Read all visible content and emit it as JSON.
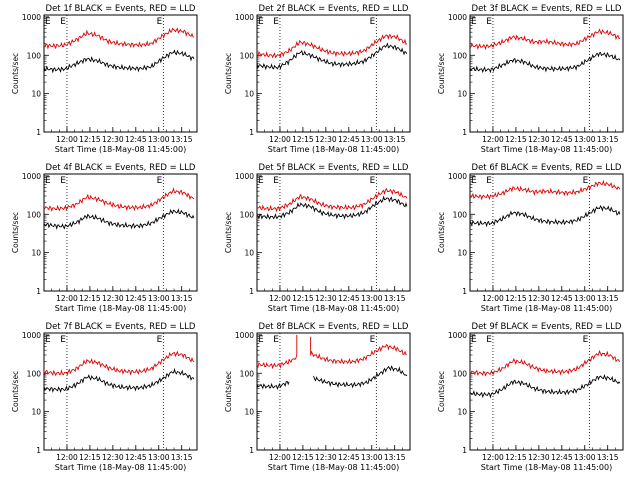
{
  "figure": {
    "xlabel": "Start Time (18-May-08 11:45:00)",
    "ylabel": "Counts/sec",
    "x_ticks": [
      "12:00",
      "12:15",
      "12:30",
      "12:45",
      "13:00",
      "13:15"
    ],
    "y_ticks": [
      "1",
      "10",
      "100",
      "1000"
    ],
    "marker_label": "E",
    "colors": {
      "events": "#000000",
      "lld": "#e00000",
      "axes": "#000000"
    }
  },
  "chart_data": [
    {
      "type": "line",
      "title": "Det 1f BLACK = Events, RED = LLD",
      "xlabel": "Start Time (18-May-08 11:45:00)",
      "ylabel": "Counts/sec",
      "y_scale": "log",
      "ylim": [
        1,
        1000
      ],
      "x_ticks": [
        "12:00",
        "12:15",
        "12:30",
        "12:45",
        "13:00",
        "13:15"
      ],
      "markers": [
        "12:00",
        "13:03"
      ],
      "series": [
        {
          "name": "Events",
          "x": [
            "11:45",
            "11:52",
            "11:59",
            "12:06",
            "12:13",
            "12:20",
            "12:27",
            "12:34",
            "12:41",
            "12:48",
            "12:55",
            "13:02",
            "13:09",
            "13:16",
            "13:23"
          ],
          "y": [
            45,
            42,
            44,
            60,
            80,
            72,
            55,
            48,
            46,
            45,
            50,
            80,
            120,
            110,
            80
          ]
        },
        {
          "name": "LLD",
          "x": [
            "11:45",
            "11:52",
            "11:59",
            "12:06",
            "12:13",
            "12:20",
            "12:27",
            "12:34",
            "12:41",
            "12:48",
            "12:55",
            "13:02",
            "13:09",
            "13:16",
            "13:23"
          ],
          "y": [
            180,
            175,
            185,
            250,
            380,
            330,
            230,
            200,
            190,
            185,
            200,
            310,
            460,
            420,
            300
          ]
        }
      ]
    },
    {
      "type": "line",
      "title": "Det 2f BLACK = Events, RED = LLD",
      "xlabel": "Start Time (18-May-08 11:45:00)",
      "ylabel": "Counts/sec",
      "y_scale": "log",
      "ylim": [
        1,
        1000
      ],
      "x_ticks": [
        "12:00",
        "12:15",
        "12:30",
        "12:45",
        "13:00",
        "13:15"
      ],
      "markers": [
        "12:00",
        "13:03"
      ],
      "series": [
        {
          "name": "Events",
          "x": [
            "11:45",
            "11:52",
            "11:59",
            "12:06",
            "12:13",
            "12:20",
            "12:27",
            "12:34",
            "12:41",
            "12:48",
            "12:55",
            "13:02",
            "13:09",
            "13:16",
            "13:23"
          ],
          "y": [
            55,
            50,
            48,
            70,
            120,
            100,
            75,
            60,
            58,
            60,
            70,
            110,
            180,
            160,
            110
          ]
        },
        {
          "name": "LLD",
          "x": [
            "11:45",
            "11:52",
            "11:59",
            "12:06",
            "12:13",
            "12:20",
            "12:27",
            "12:34",
            "12:41",
            "12:48",
            "12:55",
            "13:02",
            "13:09",
            "13:16",
            "13:23"
          ],
          "y": [
            110,
            100,
            98,
            130,
            220,
            190,
            140,
            115,
            110,
            112,
            130,
            210,
            320,
            300,
            200
          ]
        }
      ]
    },
    {
      "type": "line",
      "title": "Det 3f BLACK = Events, RED = LLD",
      "xlabel": "Start Time (18-May-08 11:45:00)",
      "ylabel": "Counts/sec",
      "y_scale": "log",
      "ylim": [
        1,
        1000
      ],
      "x_ticks": [
        "12:00",
        "12:15",
        "12:30",
        "12:45",
        "13:00",
        "13:15"
      ],
      "markers": [
        "12:00",
        "13:03"
      ],
      "series": [
        {
          "name": "Events",
          "x": [
            "11:45",
            "11:52",
            "11:59",
            "12:06",
            "12:13",
            "12:20",
            "12:27",
            "12:34",
            "12:41",
            "12:48",
            "12:55",
            "13:02",
            "13:09",
            "13:16",
            "13:23"
          ],
          "y": [
            45,
            42,
            42,
            55,
            75,
            68,
            50,
            45,
            44,
            45,
            50,
            75,
            110,
            100,
            75
          ]
        },
        {
          "name": "LLD",
          "x": [
            "11:45",
            "11:52",
            "11:59",
            "12:06",
            "12:13",
            "12:20",
            "12:27",
            "12:34",
            "12:41",
            "12:48",
            "12:55",
            "13:02",
            "13:09",
            "13:16",
            "13:23"
          ],
          "y": [
            180,
            170,
            175,
            220,
            300,
            270,
            220,
            230,
            210,
            190,
            200,
            290,
            420,
            380,
            280
          ]
        }
      ]
    },
    {
      "type": "line",
      "title": "Det 4f BLACK = Events, RED = LLD",
      "xlabel": "Start Time (18-May-08 11:45:00)",
      "ylabel": "Counts/sec",
      "y_scale": "log",
      "ylim": [
        1,
        1000
      ],
      "x_ticks": [
        "12:00",
        "12:15",
        "12:30",
        "12:45",
        "13:00",
        "13:15"
      ],
      "markers": [
        "12:00",
        "13:03"
      ],
      "series": [
        {
          "name": "Events",
          "x": [
            "11:45",
            "11:52",
            "11:59",
            "12:06",
            "12:13",
            "12:20",
            "12:27",
            "12:34",
            "12:41",
            "12:48",
            "12:55",
            "13:02",
            "13:09",
            "13:16",
            "13:23"
          ],
          "y": [
            55,
            50,
            48,
            60,
            90,
            80,
            60,
            52,
            50,
            50,
            58,
            85,
            120,
            110,
            80
          ]
        },
        {
          "name": "LLD",
          "x": [
            "11:45",
            "11:52",
            "11:59",
            "12:06",
            "12:13",
            "12:20",
            "12:27",
            "12:34",
            "12:41",
            "12:48",
            "12:55",
            "13:02",
            "13:09",
            "13:16",
            "13:23"
          ],
          "y": [
            150,
            140,
            145,
            180,
            280,
            250,
            190,
            160,
            150,
            150,
            170,
            260,
            400,
            370,
            250
          ]
        }
      ]
    },
    {
      "type": "line",
      "title": "Det 5f BLACK = Events, RED = LLD",
      "xlabel": "Start Time (18-May-08 11:45:00)",
      "ylabel": "Counts/sec",
      "y_scale": "log",
      "ylim": [
        1,
        1000
      ],
      "x_ticks": [
        "12:00",
        "12:15",
        "12:30",
        "12:45",
        "13:00",
        "13:15"
      ],
      "markers": [
        "12:00",
        "13:03"
      ],
      "series": [
        {
          "name": "Events",
          "x": [
            "11:45",
            "11:52",
            "11:59",
            "12:06",
            "12:13",
            "12:20",
            "12:27",
            "12:34",
            "12:41",
            "12:48",
            "12:55",
            "13:02",
            "13:09",
            "13:16",
            "13:23"
          ],
          "y": [
            90,
            85,
            85,
            110,
            180,
            160,
            110,
            95,
            90,
            92,
            110,
            180,
            260,
            230,
            160
          ]
        },
        {
          "name": "LLD",
          "x": [
            "11:45",
            "11:52",
            "11:59",
            "12:06",
            "12:13",
            "12:20",
            "12:27",
            "12:34",
            "12:41",
            "12:48",
            "12:55",
            "13:02",
            "13:09",
            "13:16",
            "13:23"
          ],
          "y": [
            150,
            140,
            140,
            180,
            290,
            250,
            180,
            155,
            150,
            150,
            180,
            280,
            420,
            380,
            260
          ]
        }
      ]
    },
    {
      "type": "line",
      "title": "Det 6f BLACK = Events, RED = LLD",
      "xlabel": "Start Time (18-May-08 11:45:00)",
      "ylabel": "Counts/sec",
      "y_scale": "log",
      "ylim": [
        1,
        1000
      ],
      "x_ticks": [
        "12:00",
        "12:15",
        "12:30",
        "12:45",
        "13:00",
        "13:15"
      ],
      "markers": [
        "12:00",
        "13:03"
      ],
      "series": [
        {
          "name": "Events",
          "x": [
            "11:45",
            "11:52",
            "11:59",
            "12:06",
            "12:13",
            "12:20",
            "12:27",
            "12:34",
            "12:41",
            "12:48",
            "12:55",
            "13:02",
            "13:09",
            "13:16",
            "13:23"
          ],
          "y": [
            60,
            58,
            58,
            75,
            110,
            100,
            75,
            65,
            62,
            62,
            70,
            100,
            150,
            140,
            100
          ]
        },
        {
          "name": "LLD",
          "x": [
            "11:45",
            "11:52",
            "11:59",
            "12:06",
            "12:13",
            "12:20",
            "12:27",
            "12:34",
            "12:41",
            "12:48",
            "12:55",
            "13:02",
            "13:09",
            "13:16",
            "13:23"
          ],
          "y": [
            300,
            290,
            290,
            350,
            480,
            440,
            380,
            400,
            380,
            360,
            380,
            480,
            650,
            600,
            450
          ]
        }
      ]
    },
    {
      "type": "line",
      "title": "Det 7f BLACK = Events, RED = LLD",
      "xlabel": "Start Time (18-May-08 11:45:00)",
      "ylabel": "Counts/sec",
      "y_scale": "log",
      "ylim": [
        1,
        1000
      ],
      "x_ticks": [
        "12:00",
        "12:15",
        "12:30",
        "12:45",
        "13:00",
        "13:15"
      ],
      "markers": [
        "12:00",
        "13:03"
      ],
      "series": [
        {
          "name": "Events",
          "x": [
            "11:45",
            "11:52",
            "11:59",
            "12:06",
            "12:13",
            "12:20",
            "12:27",
            "12:34",
            "12:41",
            "12:48",
            "12:55",
            "13:02",
            "13:09",
            "13:16",
            "13:23"
          ],
          "y": [
            40,
            38,
            38,
            50,
            80,
            72,
            52,
            44,
            42,
            42,
            48,
            70,
            110,
            100,
            70
          ]
        },
        {
          "name": "LLD",
          "x": [
            "11:45",
            "11:52",
            "11:59",
            "12:06",
            "12:13",
            "12:20",
            "12:27",
            "12:34",
            "12:41",
            "12:48",
            "12:55",
            "13:02",
            "13:09",
            "13:16",
            "13:23"
          ],
          "y": [
            110,
            100,
            100,
            130,
            210,
            190,
            140,
            115,
            110,
            110,
            130,
            210,
            330,
            300,
            200
          ]
        }
      ]
    },
    {
      "type": "line",
      "title": "Det 8f BLACK = Events, RED = LLD",
      "xlabel": "Start Time (18-May-08 11:45:00)",
      "ylabel": "Counts/sec",
      "y_scale": "log",
      "ylim": [
        1,
        1000
      ],
      "x_ticks": [
        "12:00",
        "12:15",
        "12:30",
        "12:45",
        "13:00",
        "13:15"
      ],
      "markers": [
        "12:00",
        "13:03"
      ],
      "annotations": "LLD spikes above 1000 near 12:11 and 12:20; data gap 12:11–12:20",
      "series": [
        {
          "name": "Events",
          "x": [
            "11:45",
            "11:52",
            "11:59",
            "12:06",
            "12:22",
            "12:29",
            "12:36",
            "12:43",
            "12:50",
            "12:57",
            "13:04",
            "13:11",
            "13:18",
            "13:23"
          ],
          "y": [
            48,
            45,
            45,
            60,
            75,
            60,
            52,
            50,
            50,
            58,
            90,
            140,
            120,
            85
          ]
        },
        {
          "name": "LLD",
          "x": [
            "11:45",
            "11:52",
            "11:59",
            "12:06",
            "12:11",
            "12:11",
            "12:20",
            "12:20",
            "12:27",
            "12:34",
            "12:41",
            "12:48",
            "12:55",
            "13:02",
            "13:09",
            "13:16",
            "13:23"
          ],
          "y": [
            170,
            160,
            160,
            200,
            260,
            1000,
            1000,
            330,
            250,
            210,
            200,
            200,
            240,
            360,
            520,
            440,
            300
          ]
        }
      ]
    },
    {
      "type": "line",
      "title": "Det 9f BLACK = Events, RED = LLD",
      "xlabel": "Start Time (18-May-08 11:45:00)",
      "ylabel": "Counts/sec",
      "y_scale": "log",
      "ylim": [
        1,
        1000
      ],
      "x_ticks": [
        "12:00",
        "12:15",
        "12:30",
        "12:45",
        "13:00",
        "13:15"
      ],
      "markers": [
        "12:00",
        "13:03"
      ],
      "series": [
        {
          "name": "Events",
          "x": [
            "11:45",
            "11:52",
            "11:59",
            "12:06",
            "12:13",
            "12:20",
            "12:27",
            "12:34",
            "12:41",
            "12:48",
            "12:55",
            "13:02",
            "13:09",
            "13:16",
            "13:23"
          ],
          "y": [
            30,
            28,
            28,
            38,
            60,
            55,
            40,
            34,
            32,
            32,
            36,
            52,
            80,
            75,
            55
          ]
        },
        {
          "name": "LLD",
          "x": [
            "11:45",
            "11:52",
            "11:59",
            "12:06",
            "12:13",
            "12:20",
            "12:27",
            "12:34",
            "12:41",
            "12:48",
            "12:55",
            "13:02",
            "13:09",
            "13:16",
            "13:23"
          ],
          "y": [
            110,
            100,
            100,
            130,
            210,
            190,
            140,
            115,
            110,
            110,
            130,
            210,
            330,
            300,
            200
          ]
        }
      ]
    }
  ]
}
